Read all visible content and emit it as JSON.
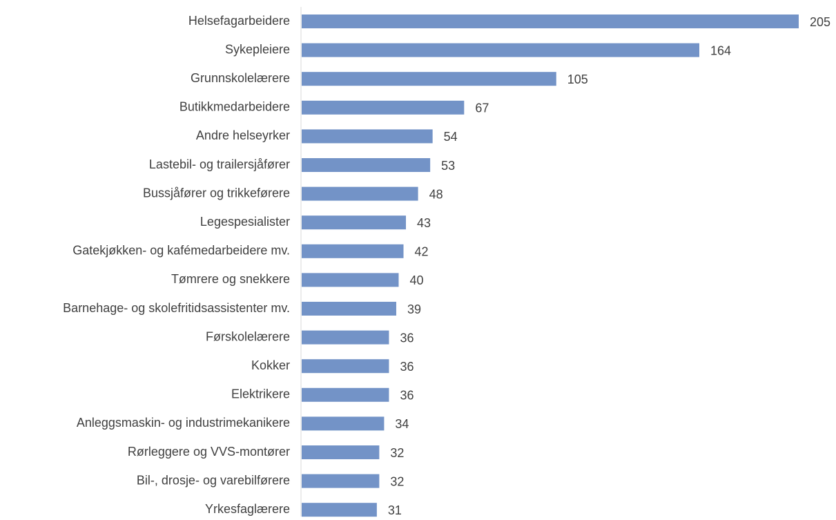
{
  "chart_data": {
    "type": "bar",
    "orientation": "horizontal",
    "categories": [
      "Helsefagarbeidere",
      "Sykepleiere",
      "Grunnskolelærere",
      "Butikkmedarbeidere",
      "Andre helseyrker",
      "Lastebil- og trailersjåfører",
      "Bussjåfører og trikkeførere",
      "Legespesialister",
      "Gatekjøkken- og kafémedarbeidere mv.",
      "Tømrere og snekkere",
      "Barnehage- og skolefritidsassistenter mv.",
      "Førskolelærere",
      "Kokker",
      "Elektrikere",
      "Anleggsmaskin- og industrimekanikere",
      "Rørleggere og VVS-montører",
      "Bil-, drosje- og varebilførere",
      "Yrkesfaglærere"
    ],
    "values": [
      205,
      164,
      105,
      67,
      54,
      53,
      48,
      43,
      42,
      40,
      39,
      36,
      36,
      36,
      34,
      32,
      32,
      31
    ],
    "color": "#7393c7"
  }
}
